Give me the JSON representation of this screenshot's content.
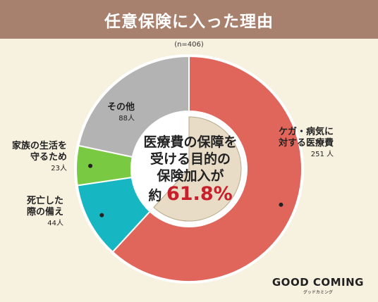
{
  "header": {
    "title": "任意保険に入った理由"
  },
  "sample_note": "(n=406)",
  "center": {
    "line1": "医療費の保障を",
    "line2": "受ける目的の",
    "line3": "保険加入が",
    "prefix": "約",
    "percent": "61.8%"
  },
  "labels": {
    "illness": {
      "line1": "ケガ・病気に",
      "line2": "対する医療費",
      "count": "251 人"
    },
    "death": {
      "line1": "死亡した",
      "line2": "際の備え",
      "count": "44人"
    },
    "family": {
      "line1": "家族の生活を",
      "line2": "守るため",
      "count": "23人"
    },
    "other": {
      "line1": "その他",
      "count": "88人"
    }
  },
  "colors": {
    "illness": "#e0655a",
    "death": "#17b6c3",
    "family": "#7ac943",
    "other": "#b3b3b3",
    "inner": "#e8dcc6",
    "background": "#f7f1df",
    "header": "#a8806e",
    "accent": "#c6202a"
  },
  "chart_data": {
    "type": "pie",
    "categories": [
      "ケガ・病気に対する医療費",
      "死亡した際の備え",
      "家族の生活を守るため",
      "その他"
    ],
    "values": [
      251,
      44,
      23,
      88
    ],
    "units": "人",
    "total": 406
  },
  "logo": {
    "main": "GOOD COMING",
    "sub": "グッドカミング"
  }
}
